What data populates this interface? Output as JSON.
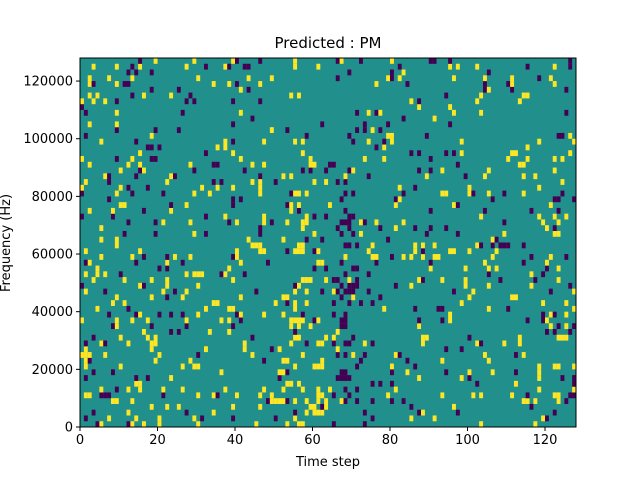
{
  "chart_data": {
    "type": "heatmap",
    "title": "Predicted : PM",
    "xlabel": "Time step",
    "ylabel": "Frequency (Hz)",
    "xlim": [
      0,
      128
    ],
    "ylim": [
      0,
      128000
    ],
    "x_ticks": [
      0,
      20,
      40,
      60,
      80,
      100,
      120
    ],
    "x_tick_labels": [
      "0",
      "20",
      "40",
      "60",
      "80",
      "100",
      "120"
    ],
    "y_ticks": [
      0,
      20000,
      40000,
      60000,
      80000,
      100000,
      120000
    ],
    "y_tick_labels": [
      "0",
      "20000",
      "40000",
      "60000",
      "80000",
      "100000",
      "120000"
    ],
    "colormap": "viridis",
    "colors": {
      "background": "#21908d",
      "low": "#440154",
      "high": "#fde725",
      "frame": "#000000"
    },
    "rows": 64,
    "cols": 128,
    "seed": 20240607,
    "high_cells": [
      [
        52,
        22
      ],
      [
        53,
        22
      ],
      [
        55,
        30
      ],
      [
        56,
        30
      ],
      [
        57,
        30
      ],
      [
        60,
        2
      ],
      [
        61,
        2
      ],
      [
        62,
        2
      ],
      [
        61,
        5
      ],
      [
        62,
        5
      ],
      [
        60,
        10
      ],
      [
        61,
        10
      ],
      [
        62,
        10
      ],
      [
        61,
        14
      ],
      [
        62,
        14
      ],
      [
        55,
        18
      ],
      [
        56,
        18
      ],
      [
        58,
        25
      ],
      [
        59,
        25
      ],
      [
        61,
        28
      ],
      [
        62,
        28
      ],
      [
        49,
        4
      ],
      [
        50,
        4
      ],
      [
        51,
        4
      ],
      [
        53,
        7
      ],
      [
        54,
        7
      ],
      [
        1,
        5
      ],
      [
        2,
        5
      ],
      [
        0,
        12
      ],
      [
        4,
        20
      ],
      [
        39,
        25
      ],
      [
        122,
        10
      ],
      [
        123,
        10
      ],
      [
        122,
        5
      ],
      [
        123,
        5
      ]
    ],
    "low_cells": [
      [
        67,
        8
      ],
      [
        68,
        8
      ],
      [
        69,
        8
      ],
      [
        67,
        9
      ],
      [
        68,
        9
      ],
      [
        68,
        14
      ],
      [
        69,
        14
      ],
      [
        67,
        18
      ],
      [
        68,
        18
      ],
      [
        69,
        23
      ],
      [
        70,
        27
      ],
      [
        71,
        27
      ],
      [
        68,
        31
      ],
      [
        69,
        31
      ],
      [
        67,
        33
      ],
      [
        69,
        36
      ],
      [
        70,
        36
      ],
      [
        68,
        40
      ],
      [
        66,
        12
      ],
      [
        65,
        5
      ],
      [
        6,
        5
      ],
      [
        7,
        5
      ],
      [
        127,
        7
      ],
      [
        127,
        8
      ],
      [
        127,
        17
      ]
    ]
  }
}
